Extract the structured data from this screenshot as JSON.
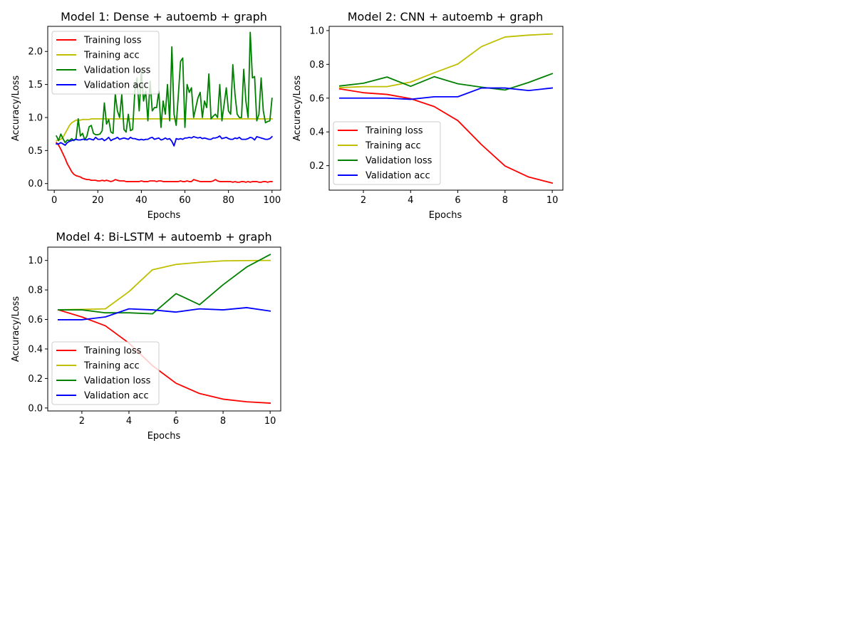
{
  "colors": {
    "training_loss": "#ff0000",
    "training_acc": "#bfbf00",
    "validation_loss": "#008000",
    "validation_acc": "#0000ff"
  },
  "chart_data": [
    {
      "type": "line",
      "title": "Model 1: Dense + autoemb + graph",
      "xlabel": "Epochs",
      "ylabel": "Accuracy/Loss",
      "xlim": [
        -3,
        104
      ],
      "ylim": [
        -0.1,
        2.38
      ],
      "xticks": [
        0,
        20,
        40,
        60,
        80,
        100
      ],
      "yticks": [
        0.0,
        0.5,
        1.0,
        1.5,
        2.0
      ],
      "grid": false,
      "legend": "top-left",
      "x": [
        1,
        2,
        3,
        4,
        5,
        6,
        7,
        8,
        9,
        10,
        11,
        12,
        13,
        14,
        15,
        16,
        17,
        18,
        19,
        20,
        21,
        22,
        23,
        24,
        25,
        26,
        27,
        28,
        29,
        30,
        31,
        32,
        33,
        34,
        35,
        36,
        37,
        38,
        39,
        40,
        41,
        42,
        43,
        44,
        45,
        46,
        47,
        48,
        49,
        50,
        51,
        52,
        53,
        54,
        55,
        56,
        57,
        58,
        59,
        60,
        61,
        62,
        63,
        64,
        65,
        66,
        67,
        68,
        69,
        70,
        71,
        72,
        73,
        74,
        75,
        76,
        77,
        78,
        79,
        80,
        81,
        82,
        83,
        84,
        85,
        86,
        87,
        88,
        89,
        90,
        91,
        92,
        93,
        94,
        95,
        96,
        97,
        98,
        99,
        100
      ],
      "series": [
        {
          "name": "Training loss",
          "color_key": "training_loss",
          "values": [
            0.62,
            0.58,
            0.52,
            0.45,
            0.38,
            0.3,
            0.24,
            0.18,
            0.14,
            0.12,
            0.11,
            0.1,
            0.08,
            0.07,
            0.06,
            0.06,
            0.05,
            0.05,
            0.05,
            0.04,
            0.04,
            0.05,
            0.04,
            0.05,
            0.04,
            0.03,
            0.04,
            0.06,
            0.05,
            0.04,
            0.04,
            0.04,
            0.03,
            0.03,
            0.03,
            0.03,
            0.03,
            0.03,
            0.03,
            0.04,
            0.03,
            0.03,
            0.03,
            0.04,
            0.04,
            0.04,
            0.03,
            0.04,
            0.04,
            0.03,
            0.03,
            0.03,
            0.03,
            0.03,
            0.03,
            0.03,
            0.03,
            0.04,
            0.03,
            0.03,
            0.04,
            0.03,
            0.03,
            0.06,
            0.05,
            0.04,
            0.03,
            0.03,
            0.03,
            0.03,
            0.03,
            0.03,
            0.04,
            0.06,
            0.04,
            0.03,
            0.03,
            0.03,
            0.03,
            0.03,
            0.03,
            0.02,
            0.03,
            0.02,
            0.02,
            0.03,
            0.03,
            0.02,
            0.03,
            0.02,
            0.03,
            0.03,
            0.03,
            0.02,
            0.02,
            0.03,
            0.03,
            0.02,
            0.03,
            0.03
          ]
        },
        {
          "name": "Training acc",
          "color_key": "training_acc",
          "values": [
            0.65,
            0.66,
            0.67,
            0.7,
            0.76,
            0.82,
            0.88,
            0.92,
            0.94,
            0.96,
            0.96,
            0.96,
            0.97,
            0.97,
            0.97,
            0.97,
            0.98,
            0.98,
            0.98,
            0.98,
            0.98,
            0.98,
            0.98,
            0.98,
            0.98,
            0.98,
            0.98,
            0.98,
            0.98,
            0.98,
            0.98,
            0.98,
            0.98,
            0.98,
            0.98,
            0.98,
            0.98,
            0.98,
            0.98,
            0.98,
            0.98,
            0.98,
            0.98,
            0.98,
            0.98,
            0.98,
            0.98,
            0.98,
            0.98,
            0.98,
            0.98,
            0.98,
            0.98,
            0.98,
            0.98,
            0.98,
            0.98,
            0.98,
            0.98,
            0.98,
            0.98,
            0.98,
            0.98,
            0.98,
            0.98,
            0.98,
            0.98,
            0.98,
            0.98,
            0.98,
            0.98,
            0.98,
            0.98,
            0.98,
            0.98,
            0.98,
            0.98,
            0.98,
            0.98,
            0.98,
            0.98,
            0.98,
            0.98,
            0.98,
            0.98,
            0.98,
            0.98,
            0.98,
            0.98,
            0.98,
            0.98,
            0.98,
            0.98,
            0.98,
            0.98,
            0.98,
            0.98,
            0.98,
            0.98,
            0.98
          ]
        },
        {
          "name": "Validation loss",
          "color_key": "validation_loss",
          "values": [
            0.72,
            0.65,
            0.75,
            0.68,
            0.62,
            0.66,
            0.65,
            0.68,
            0.65,
            0.68,
            0.98,
            0.72,
            0.76,
            0.66,
            0.72,
            0.86,
            0.88,
            0.76,
            0.74,
            0.74,
            0.75,
            0.8,
            1.22,
            0.9,
            0.97,
            0.78,
            0.76,
            1.35,
            1.1,
            1.0,
            1.35,
            0.82,
            0.78,
            1.05,
            0.8,
            0.82,
            1.4,
            1.6,
            1.1,
            1.7,
            1.25,
            1.4,
            0.95,
            1.55,
            1.1,
            1.15,
            1.15,
            1.4,
            0.85,
            1.25,
            1.05,
            1.5,
            0.95,
            2.07,
            1.05,
            0.88,
            1.35,
            1.85,
            1.9,
            0.85,
            1.5,
            1.38,
            1.45,
            1.0,
            1.15,
            1.3,
            1.38,
            1.0,
            1.25,
            1.15,
            1.66,
            0.98,
            1.02,
            1.05,
            1.0,
            1.5,
            0.95,
            1.2,
            1.45,
            1.1,
            1.05,
            1.8,
            1.35,
            1.05,
            1.0,
            1.0,
            1.73,
            1.25,
            1.0,
            2.29,
            1.6,
            1.62,
            0.95,
            1.05,
            1.6,
            1.1,
            0.92,
            0.94,
            0.95,
            1.29
          ]
        },
        {
          "name": "Validation acc",
          "color_key": "validation_acc",
          "values": [
            0.6,
            0.6,
            0.62,
            0.6,
            0.58,
            0.62,
            0.64,
            0.65,
            0.66,
            0.67,
            0.66,
            0.66,
            0.67,
            0.67,
            0.66,
            0.68,
            0.67,
            0.66,
            0.7,
            0.67,
            0.67,
            0.68,
            0.65,
            0.67,
            0.7,
            0.65,
            0.67,
            0.68,
            0.7,
            0.67,
            0.68,
            0.69,
            0.68,
            0.67,
            0.7,
            0.68,
            0.68,
            0.67,
            0.66,
            0.67,
            0.66,
            0.67,
            0.67,
            0.69,
            0.7,
            0.67,
            0.68,
            0.69,
            0.66,
            0.67,
            0.69,
            0.67,
            0.68,
            0.64,
            0.57,
            0.68,
            0.67,
            0.68,
            0.67,
            0.69,
            0.69,
            0.7,
            0.69,
            0.71,
            0.7,
            0.69,
            0.7,
            0.68,
            0.69,
            0.68,
            0.67,
            0.67,
            0.69,
            0.69,
            0.7,
            0.72,
            0.68,
            0.69,
            0.7,
            0.68,
            0.67,
            0.67,
            0.69,
            0.68,
            0.7,
            0.67,
            0.67,
            0.67,
            0.68,
            0.7,
            0.69,
            0.66,
            0.71,
            0.7,
            0.69,
            0.68,
            0.67,
            0.67,
            0.68,
            0.71
          ]
        }
      ]
    },
    {
      "type": "line",
      "title": "Model 2: CNN + autoemb + graph",
      "xlabel": "Epochs",
      "ylabel": "Accuracy/Loss",
      "xlim": [
        0.55,
        10.45
      ],
      "ylim": [
        0.055,
        1.025
      ],
      "xticks": [
        2,
        4,
        6,
        8,
        10
      ],
      "yticks": [
        0.2,
        0.4,
        0.6,
        0.8,
        1.0
      ],
      "grid": false,
      "legend": "lower-left",
      "x": [
        1,
        2,
        3,
        4,
        5,
        6,
        7,
        8,
        9,
        10
      ],
      "series": [
        {
          "name": "Training loss",
          "color_key": "training_loss",
          "values": [
            0.655,
            0.632,
            0.622,
            0.597,
            0.55,
            0.467,
            0.325,
            0.198,
            0.133,
            0.097
          ]
        },
        {
          "name": "Training acc",
          "color_key": "training_acc",
          "values": [
            0.662,
            0.668,
            0.668,
            0.695,
            0.75,
            0.802,
            0.905,
            0.962,
            0.973,
            0.98
          ]
        },
        {
          "name": "Validation loss",
          "color_key": "validation_loss",
          "values": [
            0.672,
            0.688,
            0.725,
            0.67,
            0.727,
            0.685,
            0.665,
            0.648,
            0.693,
            0.745
          ]
        },
        {
          "name": "Validation acc",
          "color_key": "validation_acc",
          "values": [
            0.6,
            0.6,
            0.6,
            0.593,
            0.608,
            0.608,
            0.66,
            0.66,
            0.645,
            0.66
          ]
        }
      ]
    },
    {
      "type": "line",
      "title": "Model 4: Bi-LSTM + autoemb + graph",
      "xlabel": "Epochs",
      "ylabel": "Accuracy/Loss",
      "xlim": [
        0.55,
        10.45
      ],
      "ylim": [
        -0.02,
        1.09
      ],
      "xticks": [
        2,
        4,
        6,
        8,
        10
      ],
      "yticks": [
        0.0,
        0.2,
        0.4,
        0.6,
        0.8,
        1.0
      ],
      "grid": false,
      "legend": "lower-left",
      "x": [
        1,
        2,
        3,
        4,
        5,
        6,
        7,
        8,
        9,
        10
      ],
      "series": [
        {
          "name": "Training loss",
          "color_key": "training_loss",
          "values": [
            0.665,
            0.617,
            0.557,
            0.44,
            0.287,
            0.168,
            0.098,
            0.06,
            0.042,
            0.033
          ]
        },
        {
          "name": "Training acc",
          "color_key": "training_acc",
          "values": [
            0.665,
            0.668,
            0.672,
            0.788,
            0.937,
            0.973,
            0.987,
            0.997,
            0.999,
            1.0
          ]
        },
        {
          "name": "Validation loss",
          "color_key": "validation_loss",
          "values": [
            0.665,
            0.665,
            0.645,
            0.645,
            0.638,
            0.775,
            0.7,
            0.835,
            0.955,
            1.04
          ]
        },
        {
          "name": "Validation acc",
          "color_key": "validation_acc",
          "values": [
            0.598,
            0.598,
            0.617,
            0.672,
            0.665,
            0.65,
            0.672,
            0.665,
            0.68,
            0.657
          ]
        }
      ]
    }
  ]
}
